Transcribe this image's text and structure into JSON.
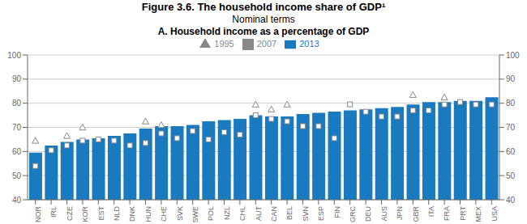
{
  "chart_data": {
    "type": "bar",
    "title": "Figure 3.6.  The household income share of GDP¹",
    "subtitle": [
      "Nominal terms",
      "A. Household income as a percentage of GDP"
    ],
    "categories": [
      "NOR",
      "IRL",
      "CZE",
      "KOR",
      "EST",
      "NLD",
      "DNK",
      "HUN",
      "CHE",
      "SVK",
      "SWE",
      "POL",
      "NZL",
      "CHL",
      "AUT",
      "CAN",
      "BEL",
      "SVN",
      "ESP",
      "FIN",
      "GRC",
      "DEU",
      "AUS",
      "JPN",
      "GBR",
      "ITA",
      "FRA",
      "PRT",
      "MEX",
      "USA"
    ],
    "series": [
      {
        "name": "2013",
        "type": "bar",
        "color": "#1a7abf",
        "values": [
          59.5,
          62.5,
          64.0,
          65.0,
          65.5,
          66.5,
          67.5,
          69.5,
          70.5,
          70.5,
          71.0,
          72.5,
          73.0,
          73.5,
          75.0,
          74.5,
          74.5,
          75.5,
          76.0,
          76.5,
          77.0,
          77.5,
          78.0,
          78.5,
          79.5,
          80.5,
          80.5,
          81.0,
          81.0,
          82.5
        ]
      },
      {
        "name": "1995",
        "type": "scatter",
        "marker": "triangle",
        "color": "#888888",
        "values": [
          64.5,
          null,
          66.5,
          70.0,
          null,
          null,
          null,
          72.5,
          71.0,
          null,
          null,
          null,
          null,
          null,
          79.5,
          77.5,
          79.5,
          null,
          null,
          null,
          null,
          null,
          null,
          null,
          83.5,
          null,
          82.5,
          null,
          null,
          null
        ]
      },
      {
        "name": "2007",
        "type": "scatter",
        "marker": "square",
        "color": "#888888",
        "values": [
          54.0,
          60.5,
          62.5,
          64.5,
          65.0,
          64.5,
          62.5,
          63.5,
          67.5,
          65.5,
          68.5,
          65.0,
          68.0,
          67.0,
          75.0,
          73.5,
          72.5,
          70.5,
          70.5,
          65.5,
          79.5,
          76.5,
          74.5,
          74.5,
          77.0,
          77.0,
          79.5,
          80.5,
          79.5,
          79.5
        ]
      }
    ],
    "ylim": [
      40,
      100
    ],
    "yticks": [
      40,
      50,
      60,
      70,
      80,
      90,
      100
    ],
    "y2lim": [
      40,
      100
    ],
    "y2ticks": [
      40,
      50,
      60,
      70,
      80,
      90,
      100
    ],
    "grid": true,
    "legend": "top"
  }
}
